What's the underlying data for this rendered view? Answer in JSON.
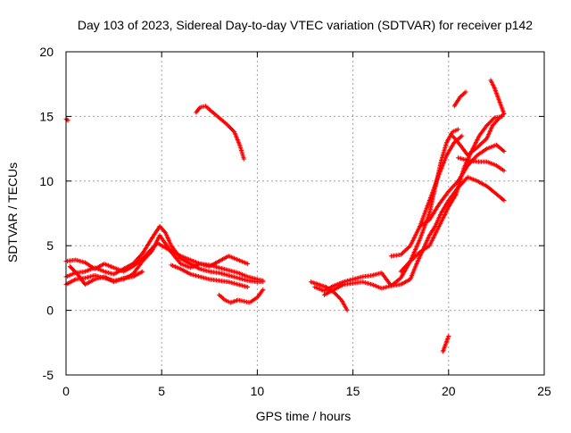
{
  "chart_data": {
    "type": "scatter",
    "title": "Day 103 of 2023, Sidereal Day-to-day VTEC variation (SDTVAR) for receiver p142",
    "xlabel": "GPS time / hours",
    "ylabel": "SDTVAR / TECUs",
    "xlim": [
      0,
      25
    ],
    "ylim": [
      -5,
      20
    ],
    "x_ticks": [
      0,
      5,
      10,
      15,
      20,
      25
    ],
    "y_ticks": [
      -5,
      0,
      5,
      10,
      15,
      20
    ],
    "grid": true,
    "marker": "+",
    "color": "#ff0000",
    "series": [
      {
        "name": "s1",
        "x": [
          0.0,
          0.1
        ],
        "y": [
          14.8,
          14.7
        ]
      },
      {
        "name": "s2",
        "x": [
          0.0,
          0.5,
          1.0,
          1.5,
          2.0,
          2.5,
          3.0,
          3.5,
          4.0,
          4.5,
          4.8,
          5.0,
          5.5,
          6.0,
          6.5,
          7.0,
          7.5,
          8.0,
          8.5,
          9.0,
          9.5,
          10.0,
          10.3
        ],
        "y": [
          3.8,
          3.9,
          3.7,
          3.2,
          3.6,
          3.3,
          3.0,
          3.4,
          4.0,
          4.8,
          5.2,
          5.0,
          4.6,
          4.2,
          3.9,
          3.6,
          3.5,
          3.3,
          3.1,
          2.9,
          2.6,
          2.4,
          2.3
        ]
      },
      {
        "name": "s3",
        "x": [
          0.0,
          0.5,
          1.0,
          1.5,
          2.0,
          2.5,
          3.0,
          3.5,
          4.0,
          4.5,
          4.9,
          5.2,
          5.5,
          6.0,
          6.5,
          7.0,
          7.5,
          8.0,
          8.5,
          9.0,
          9.5,
          10.0,
          10.3
        ],
        "y": [
          2.6,
          2.9,
          3.0,
          3.3,
          3.0,
          2.8,
          3.2,
          3.6,
          4.4,
          5.6,
          6.5,
          6.0,
          5.0,
          4.0,
          3.6,
          3.2,
          3.0,
          2.9,
          2.7,
          2.5,
          2.3,
          2.2,
          2.2
        ]
      },
      {
        "name": "s4",
        "x": [
          0.0,
          0.5,
          1.0,
          1.5,
          2.0,
          2.5,
          3.0,
          3.5,
          4.0,
          4.5,
          4.9,
          5.5,
          6.0,
          6.5,
          7.0,
          7.5,
          8.0,
          8.5,
          9.0,
          9.5
        ],
        "y": [
          2.0,
          2.4,
          2.5,
          2.7,
          2.5,
          2.3,
          2.4,
          2.8,
          3.8,
          4.6,
          5.8,
          4.5,
          3.6,
          3.3,
          3.6,
          3.4,
          3.8,
          4.2,
          3.9,
          3.6
        ]
      },
      {
        "name": "s5",
        "x": [
          0.2,
          0.6,
          1.0,
          1.5,
          2.0,
          2.5,
          3.0,
          3.5,
          4.0
        ],
        "y": [
          3.4,
          2.8,
          2.0,
          2.4,
          2.6,
          2.2,
          2.5,
          2.6,
          3.0
        ]
      },
      {
        "name": "s6",
        "x": [
          5.5,
          6.0,
          6.5,
          7.0,
          7.5,
          8.0,
          8.5,
          9.0,
          9.5
        ],
        "y": [
          3.5,
          3.2,
          2.8,
          2.6,
          2.4,
          2.3,
          2.2,
          2.0,
          1.8
        ]
      },
      {
        "name": "s7",
        "x": [
          8.0,
          8.3,
          8.6,
          9.0,
          9.3,
          9.6,
          10.0,
          10.3
        ],
        "y": [
          1.2,
          0.8,
          0.6,
          0.8,
          0.7,
          0.6,
          1.0,
          1.6
        ]
      },
      {
        "name": "s8",
        "x": [
          6.8,
          7.0,
          7.3,
          7.6,
          8.0,
          8.4,
          8.8,
          9.1,
          9.3
        ],
        "y": [
          15.3,
          15.7,
          15.8,
          15.4,
          14.9,
          14.4,
          13.8,
          12.7,
          11.7
        ]
      },
      {
        "name": "s9",
        "x": [
          12.8,
          13.2,
          13.6,
          14.0,
          14.4,
          14.7
        ],
        "y": [
          2.2,
          2.0,
          1.8,
          1.4,
          0.8,
          0.0
        ]
      },
      {
        "name": "s10",
        "x": [
          13.0,
          13.5,
          14.0,
          14.5,
          15.0,
          15.5,
          16.0,
          16.5,
          17.0,
          17.5,
          18.0,
          18.3,
          18.6,
          19.0,
          19.3,
          19.6,
          20.0,
          20.5,
          21.0,
          21.5,
          22.0,
          22.5,
          22.9
        ],
        "y": [
          1.8,
          1.5,
          1.9,
          2.2,
          2.4,
          2.6,
          2.7,
          2.9,
          1.9,
          2.0,
          2.4,
          3.5,
          4.5,
          5.8,
          6.5,
          7.5,
          8.5,
          9.5,
          10.3,
          10.0,
          9.6,
          9.0,
          8.5
        ]
      },
      {
        "name": "s11",
        "x": [
          13.5,
          14.0,
          14.5,
          15.0,
          15.5,
          16.0,
          16.5,
          17.0,
          17.5,
          18.0,
          18.5,
          19.0,
          19.3,
          19.6,
          19.9,
          20.2,
          20.5
        ],
        "y": [
          1.2,
          1.6,
          2.0,
          2.1,
          2.2,
          2.0,
          1.7,
          1.9,
          2.5,
          3.8,
          5.5,
          7.5,
          9.5,
          11.5,
          13.0,
          13.8,
          14.0
        ]
      },
      {
        "name": "s12",
        "x": [
          17.0,
          17.5,
          18.0,
          18.5,
          19.0,
          19.5,
          19.9,
          20.3,
          20.7
        ],
        "y": [
          4.2,
          4.3,
          5.0,
          6.5,
          8.5,
          10.5,
          12.0,
          13.0,
          13.5
        ]
      },
      {
        "name": "s13",
        "x": [
          17.5,
          18.0,
          18.5,
          19.0,
          19.5,
          20.0,
          20.4,
          20.8,
          21.2,
          21.6,
          22.0,
          22.4,
          22.8
        ],
        "y": [
          3.0,
          3.8,
          4.5,
          5.0,
          6.5,
          8.0,
          9.0,
          11.0,
          12.3,
          13.5,
          14.3,
          14.9,
          15.0
        ]
      },
      {
        "name": "s14",
        "x": [
          18.5,
          19.0,
          19.5,
          20.0,
          20.5,
          21.0,
          21.5,
          22.0,
          22.5,
          22.9
        ],
        "y": [
          6.5,
          7.0,
          8.2,
          9.2,
          10.0,
          11.2,
          12.0,
          12.5,
          12.8,
          12.3
        ]
      },
      {
        "name": "s15",
        "x": [
          20.5,
          21.0,
          21.5,
          22.0,
          22.5,
          22.9
        ],
        "y": [
          11.8,
          11.6,
          11.5,
          11.5,
          11.2,
          10.8
        ]
      },
      {
        "name": "s16",
        "x": [
          20.2,
          20.6,
          21.0,
          21.5,
          22.0,
          22.3,
          22.6,
          22.9
        ],
        "y": [
          13.5,
          12.8,
          12.0,
          12.6,
          13.3,
          14.3,
          14.8,
          15.2
        ]
      },
      {
        "name": "s17",
        "x": [
          20.3,
          20.6,
          20.9
        ],
        "y": [
          15.8,
          16.5,
          16.9
        ]
      },
      {
        "name": "s18",
        "x": [
          22.2,
          22.4,
          22.6,
          22.8,
          22.9
        ],
        "y": [
          17.8,
          17.2,
          16.4,
          15.6,
          15.2
        ]
      },
      {
        "name": "s19",
        "x": [
          19.7,
          19.8,
          20.0
        ],
        "y": [
          -3.2,
          -2.8,
          -2.0
        ]
      }
    ]
  }
}
